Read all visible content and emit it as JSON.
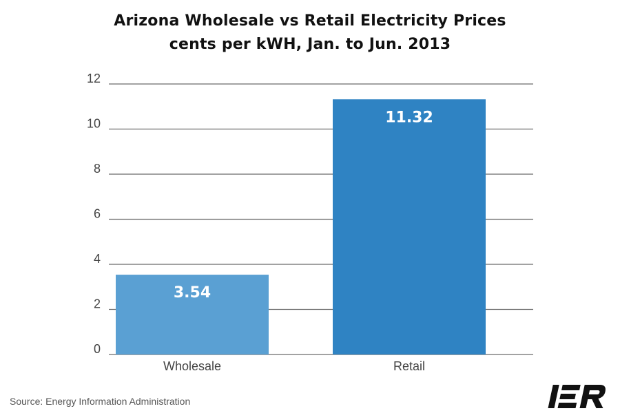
{
  "chart_data": {
    "type": "bar",
    "title": "Arizona Wholesale vs Retail Electricity Prices",
    "subtitle": "cents per kWH, Jan. to Jun. 2013",
    "categories": [
      "Wholesale",
      "Retail"
    ],
    "values": [
      3.54,
      11.32
    ],
    "value_labels": [
      "3.54",
      "11.32"
    ],
    "y_ticks": [
      "0",
      "2",
      "4",
      "6",
      "8",
      "10",
      "12"
    ],
    "ylim": [
      0,
      12
    ],
    "grid": true,
    "colors": [
      "#5aa0d3",
      "#2f83c3"
    ],
    "label_color": "#ffffff"
  },
  "footer": {
    "source": "Source: Energy Information Administration",
    "logo_text": "IER"
  }
}
